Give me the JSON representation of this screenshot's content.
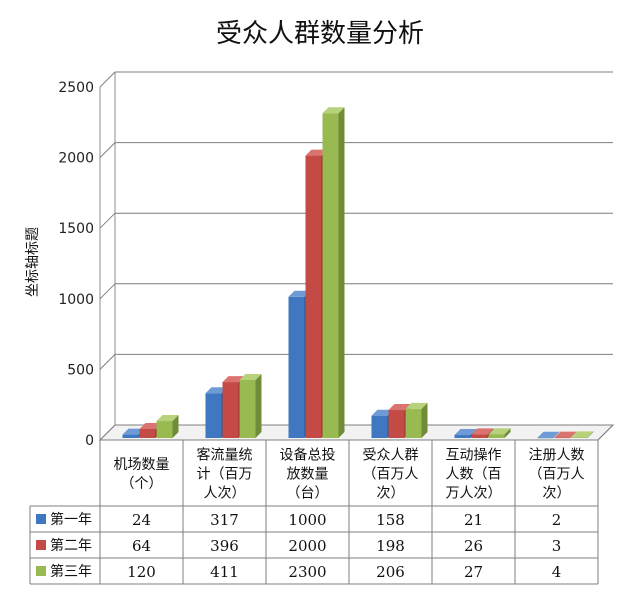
{
  "chart_data": {
    "type": "bar",
    "title": "受众人群数量分析",
    "ylabel": "坐标轴标题",
    "xlabel": "",
    "ylim": [
      0,
      2500
    ],
    "yticks": [
      0,
      500,
      1000,
      1500,
      2000,
      2500
    ],
    "grid": true,
    "legend": "data-table",
    "categories": [
      [
        "机场数量",
        "（个）"
      ],
      [
        "客流量统",
        "计（百万",
        "人次）"
      ],
      [
        "设备总投",
        "放数量",
        "（台）"
      ],
      [
        "受众人群",
        "（百万人",
        "次）"
      ],
      [
        "互动操作",
        "人数（百",
        "万人次）"
      ],
      [
        "注册人数",
        "（百万人",
        "次）"
      ]
    ],
    "series": [
      {
        "name": "第一年",
        "values": [
          24,
          317,
          1000,
          158,
          21,
          2
        ]
      },
      {
        "name": "第二年",
        "values": [
          64,
          396,
          2000,
          198,
          26,
          3
        ]
      },
      {
        "name": "第三年",
        "values": [
          120,
          411,
          2300,
          206,
          27,
          4
        ]
      }
    ],
    "colors": {
      "series": [
        "#3f78c0",
        "#c44a45",
        "#98ba50"
      ],
      "series_dark": [
        "#2d5990",
        "#913532",
        "#718c39"
      ],
      "series_top": [
        "#6e9bd6",
        "#db7470",
        "#b7d27a"
      ],
      "grid": "#7f7f7f"
    }
  }
}
